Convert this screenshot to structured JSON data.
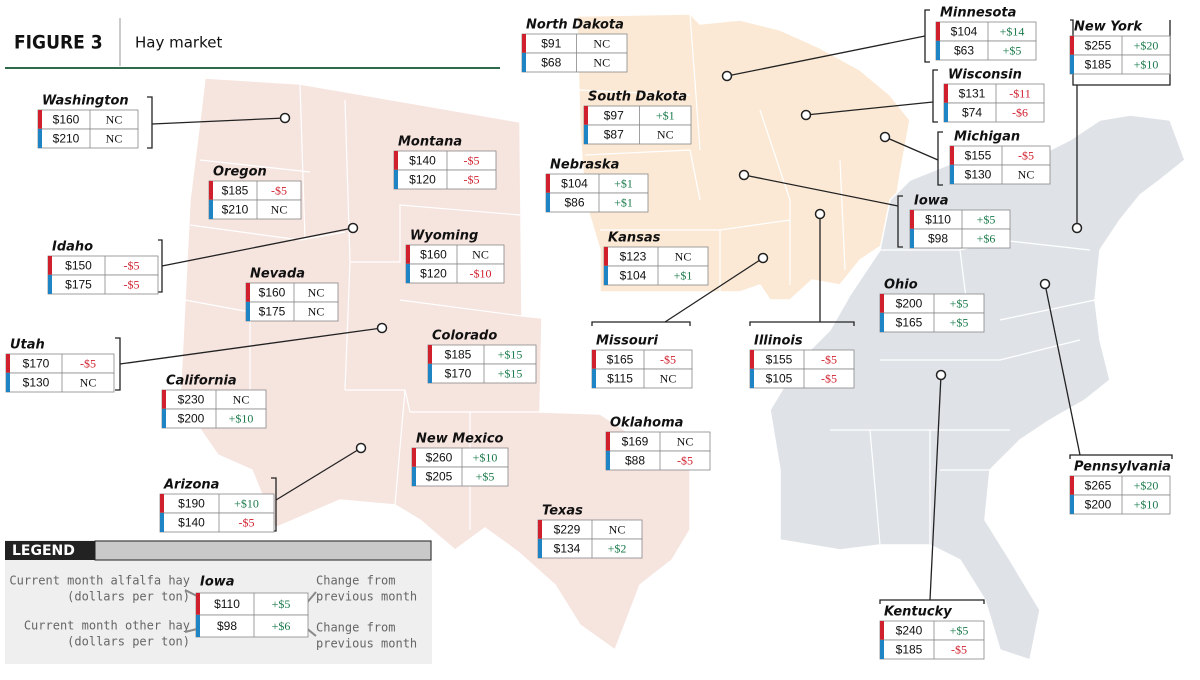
{
  "header": {
    "figure": "FIGURE 3",
    "title": "Hay market"
  },
  "states": [
    {
      "name": "North Dakota",
      "alfalfa": {
        "price": "$91",
        "change": "NC"
      },
      "other": {
        "price": "$68",
        "change": "NC"
      }
    },
    {
      "name": "Minnesota",
      "alfalfa": {
        "price": "$104",
        "change": "+$14"
      },
      "other": {
        "price": "$63",
        "change": "+$5"
      }
    },
    {
      "name": "New York",
      "alfalfa": {
        "price": "$255",
        "change": "+$20"
      },
      "other": {
        "price": "$185",
        "change": "+$10"
      }
    },
    {
      "name": "Wisconsin",
      "alfalfa": {
        "price": "$131",
        "change": "-$11"
      },
      "other": {
        "price": "$74",
        "change": "-$6"
      }
    },
    {
      "name": "South Dakota",
      "alfalfa": {
        "price": "$97",
        "change": "+$1"
      },
      "other": {
        "price": "$87",
        "change": "NC"
      }
    },
    {
      "name": "Michigan",
      "alfalfa": {
        "price": "$155",
        "change": "-$5"
      },
      "other": {
        "price": "$130",
        "change": "NC"
      }
    },
    {
      "name": "Washington",
      "alfalfa": {
        "price": "$160",
        "change": "NC"
      },
      "other": {
        "price": "$210",
        "change": "NC"
      }
    },
    {
      "name": "Montana",
      "alfalfa": {
        "price": "$140",
        "change": "-$5"
      },
      "other": {
        "price": "$120",
        "change": "-$5"
      }
    },
    {
      "name": "Oregon",
      "alfalfa": {
        "price": "$185",
        "change": "-$5"
      },
      "other": {
        "price": "$210",
        "change": "NC"
      }
    },
    {
      "name": "Nebraska",
      "alfalfa": {
        "price": "$104",
        "change": "+$1"
      },
      "other": {
        "price": "$86",
        "change": "+$1"
      }
    },
    {
      "name": "Iowa",
      "alfalfa": {
        "price": "$110",
        "change": "+$5"
      },
      "other": {
        "price": "$98",
        "change": "+$6"
      }
    },
    {
      "name": "Kansas",
      "alfalfa": {
        "price": "$123",
        "change": "NC"
      },
      "other": {
        "price": "$104",
        "change": "+$1"
      }
    },
    {
      "name": "Wyoming",
      "alfalfa": {
        "price": "$160",
        "change": "NC"
      },
      "other": {
        "price": "$120",
        "change": "-$10"
      }
    },
    {
      "name": "Idaho",
      "alfalfa": {
        "price": "$150",
        "change": "-$5"
      },
      "other": {
        "price": "$175",
        "change": "-$5"
      }
    },
    {
      "name": "Nevada",
      "alfalfa": {
        "price": "$160",
        "change": "NC"
      },
      "other": {
        "price": "$175",
        "change": "NC"
      }
    },
    {
      "name": "Ohio",
      "alfalfa": {
        "price": "$200",
        "change": "+$5"
      },
      "other": {
        "price": "$165",
        "change": "+$5"
      }
    },
    {
      "name": "Utah",
      "alfalfa": {
        "price": "$170",
        "change": "-$5"
      },
      "other": {
        "price": "$130",
        "change": "NC"
      }
    },
    {
      "name": "Colorado",
      "alfalfa": {
        "price": "$185",
        "change": "+$15"
      },
      "other": {
        "price": "$170",
        "change": "+$15"
      }
    },
    {
      "name": "Missouri",
      "alfalfa": {
        "price": "$165",
        "change": "-$5"
      },
      "other": {
        "price": "$115",
        "change": "NC"
      }
    },
    {
      "name": "Illinois",
      "alfalfa": {
        "price": "$155",
        "change": "-$5"
      },
      "other": {
        "price": "$105",
        "change": "-$5"
      }
    },
    {
      "name": "California",
      "alfalfa": {
        "price": "$230",
        "change": "NC"
      },
      "other": {
        "price": "$200",
        "change": "+$10"
      }
    },
    {
      "name": "Pennsylvania",
      "alfalfa": {
        "price": "$265",
        "change": "+$20"
      },
      "other": {
        "price": "$200",
        "change": "+$10"
      }
    },
    {
      "name": "Oklahoma",
      "alfalfa": {
        "price": "$169",
        "change": "NC"
      },
      "other": {
        "price": "$88",
        "change": "-$5"
      }
    },
    {
      "name": "New Mexico",
      "alfalfa": {
        "price": "$260",
        "change": "+$10"
      },
      "other": {
        "price": "$205",
        "change": "+$5"
      }
    },
    {
      "name": "Arizona",
      "alfalfa": {
        "price": "$190",
        "change": "+$10"
      },
      "other": {
        "price": "$140",
        "change": "-$5"
      }
    },
    {
      "name": "Texas",
      "alfalfa": {
        "price": "$229",
        "change": "NC"
      },
      "other": {
        "price": "$134",
        "change": "+$2"
      }
    },
    {
      "name": "Kentucky",
      "alfalfa": {
        "price": "$240",
        "change": "+$5"
      },
      "other": {
        "price": "$185",
        "change": "-$5"
      }
    }
  ],
  "legend": {
    "title": "LEGEND",
    "state": "Iowa",
    "alfalfa": {
      "price": "$110",
      "change": "+$5"
    },
    "other": {
      "price": "$98",
      "change": "+$6"
    },
    "notes": [
      "Current month alfalfa hay",
      "(dollars per ton)",
      "Current month other hay",
      "(dollars per ton)",
      "Change from",
      "previous month",
      "Change from",
      "previous month"
    ]
  }
}
